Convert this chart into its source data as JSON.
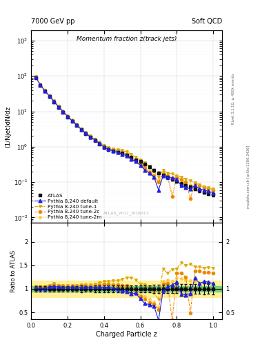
{
  "title_top_left": "7000 GeV pp",
  "title_top_right": "Soft QCD",
  "main_title": "Momentum fraction z(track jets)",
  "ylabel_main": "(1/Njet)dN/dz",
  "ylabel_ratio": "Ratio to ATLAS",
  "xlabel": "Charged Particle z",
  "right_label_top": "Rivet 3.1.10, ≥ 400k events",
  "right_label_bot": "mcplots.cern.ch [arXiv:1306.3436]",
  "watermark": "ATLAS_2011_I919017",
  "xlim": [
    0.0,
    1.05
  ],
  "ylim_main": [
    0.007,
    2000
  ],
  "ylim_ratio": [
    0.35,
    2.4
  ],
  "atlas_x": [
    0.025,
    0.05,
    0.075,
    0.1,
    0.125,
    0.15,
    0.175,
    0.2,
    0.225,
    0.25,
    0.275,
    0.3,
    0.325,
    0.35,
    0.375,
    0.4,
    0.425,
    0.45,
    0.475,
    0.5,
    0.525,
    0.55,
    0.575,
    0.6,
    0.625,
    0.65,
    0.675,
    0.7,
    0.725,
    0.75,
    0.775,
    0.8,
    0.825,
    0.85,
    0.875,
    0.9,
    0.925,
    0.95,
    0.975,
    1.0
  ],
  "atlas_y": [
    90,
    55,
    38,
    26,
    18,
    13,
    9.5,
    7.0,
    5.2,
    4.0,
    3.0,
    2.3,
    1.85,
    1.5,
    1.2,
    0.95,
    0.82,
    0.75,
    0.7,
    0.65,
    0.58,
    0.5,
    0.42,
    0.38,
    0.32,
    0.27,
    0.22,
    0.18,
    0.155,
    0.135,
    0.12,
    0.105,
    0.09,
    0.08,
    0.072,
    0.065,
    0.058,
    0.052,
    0.048,
    0.045
  ],
  "atlas_yerr": [
    5,
    3,
    2,
    1.5,
    1,
    0.8,
    0.5,
    0.4,
    0.3,
    0.25,
    0.2,
    0.15,
    0.12,
    0.1,
    0.08,
    0.07,
    0.06,
    0.055,
    0.05,
    0.05,
    0.04,
    0.04,
    0.03,
    0.03,
    0.025,
    0.02,
    0.018,
    0.015,
    0.013,
    0.012,
    0.011,
    0.01,
    0.009,
    0.008,
    0.007,
    0.007,
    0.006,
    0.006,
    0.005,
    0.005
  ],
  "pythia_default_y": [
    92,
    56,
    38,
    27,
    19,
    13.5,
    9.8,
    7.2,
    5.4,
    4.1,
    3.1,
    2.4,
    1.9,
    1.55,
    1.25,
    0.98,
    0.85,
    0.76,
    0.7,
    0.62,
    0.55,
    0.45,
    0.38,
    0.3,
    0.22,
    0.18,
    0.14,
    0.06,
    0.15,
    0.14,
    0.13,
    0.12,
    0.08,
    0.07,
    0.065,
    0.08,
    0.065,
    0.06,
    0.055,
    0.05
  ],
  "pythia_tune1_y": [
    95,
    58,
    40,
    28,
    20,
    14,
    10.2,
    7.5,
    5.6,
    4.3,
    3.25,
    2.5,
    2.0,
    1.65,
    1.35,
    1.1,
    0.95,
    0.88,
    0.82,
    0.78,
    0.72,
    0.62,
    0.5,
    0.42,
    0.35,
    0.28,
    0.2,
    0.14,
    0.22,
    0.18,
    0.17,
    0.15,
    0.14,
    0.12,
    0.11,
    0.095,
    0.085,
    0.075,
    0.07,
    0.065
  ],
  "pythia_tune2c_y": [
    93,
    57,
    39,
    27.5,
    19.5,
    14,
    10.0,
    7.3,
    5.5,
    4.2,
    3.2,
    2.45,
    1.95,
    1.6,
    1.3,
    1.05,
    0.9,
    0.82,
    0.76,
    0.7,
    0.62,
    0.5,
    0.4,
    0.32,
    0.25,
    0.19,
    0.15,
    0.1,
    0.17,
    0.15,
    0.04,
    0.14,
    0.12,
    0.1,
    0.035,
    0.09,
    0.08,
    0.07,
    0.065,
    0.06
  ],
  "pythia_tune2m_y": [
    94,
    57,
    39,
    27,
    19,
    13.5,
    9.9,
    7.2,
    5.4,
    4.1,
    3.1,
    2.4,
    1.92,
    1.58,
    1.28,
    1.02,
    0.88,
    0.8,
    0.75,
    0.68,
    0.6,
    0.5,
    0.4,
    0.33,
    0.27,
    0.21,
    0.16,
    0.11,
    0.18,
    0.16,
    0.14,
    0.13,
    0.11,
    0.095,
    0.085,
    0.075,
    0.065,
    0.058,
    0.055,
    0.05
  ],
  "color_atlas": "#111111",
  "color_default": "#2222dd",
  "color_tune1": "#ddaa00",
  "color_tune2c": "#ee8800",
  "color_tune2m": "#ffcc44",
  "green_inner_lo": 0.94,
  "green_inner_hi": 1.06,
  "yellow_outer_lo": 0.82,
  "yellow_outer_hi": 1.18
}
